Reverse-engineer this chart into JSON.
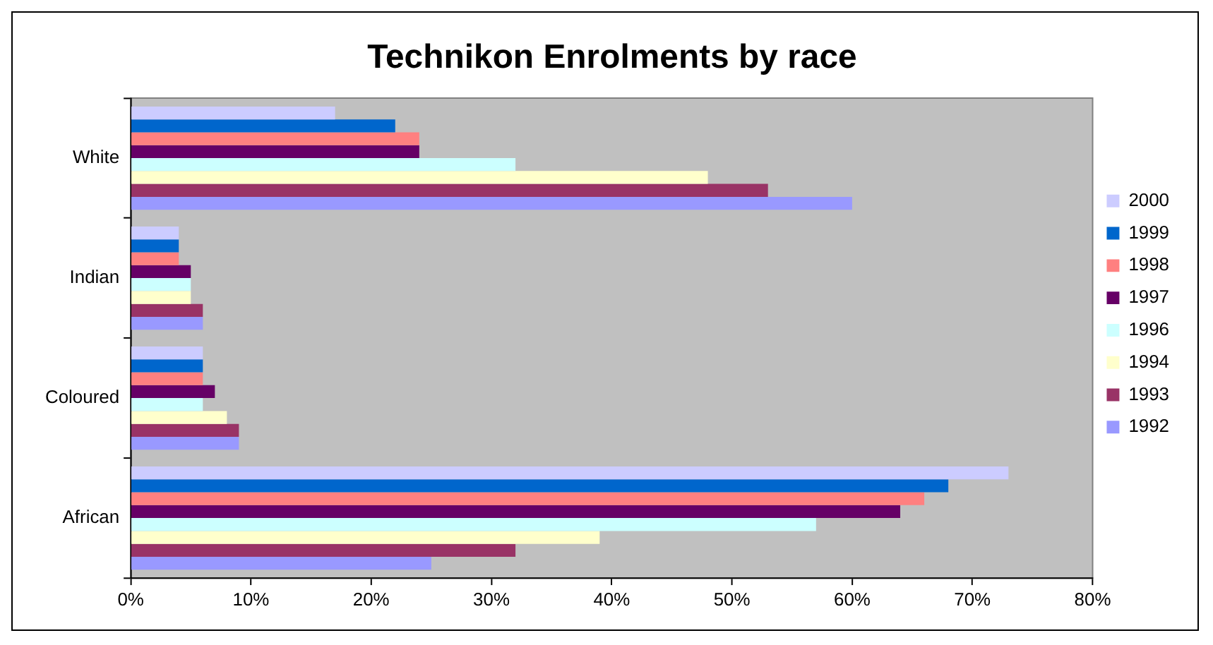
{
  "chart_data": {
    "type": "bar",
    "orientation": "horizontal",
    "title": "Technikon Enrolments by race",
    "categories": [
      "White",
      "Indian",
      "Coloured",
      "African"
    ],
    "series": [
      {
        "name": "2000",
        "color": "#ccccff",
        "values": [
          17,
          4,
          6,
          73
        ]
      },
      {
        "name": "1999",
        "color": "#0066cc",
        "values": [
          22,
          4,
          6,
          68
        ]
      },
      {
        "name": "1998",
        "color": "#ff8080",
        "values": [
          24,
          4,
          6,
          66
        ]
      },
      {
        "name": "1997",
        "color": "#660066",
        "values": [
          24,
          5,
          7,
          64
        ]
      },
      {
        "name": "1996",
        "color": "#ccffff",
        "values": [
          32,
          5,
          6,
          57
        ]
      },
      {
        "name": "1994",
        "color": "#ffffcc",
        "values": [
          48,
          5,
          8,
          39
        ]
      },
      {
        "name": "1993",
        "color": "#993366",
        "values": [
          53,
          6,
          9,
          32
        ]
      },
      {
        "name": "1992",
        "color": "#9999ff",
        "values": [
          60,
          6,
          9,
          25
        ]
      }
    ],
    "xlim": [
      0,
      80
    ],
    "xticks": [
      {
        "value": 0,
        "label": "0%"
      },
      {
        "value": 10,
        "label": "10%"
      },
      {
        "value": 20,
        "label": "20%"
      },
      {
        "value": 30,
        "label": "30%"
      },
      {
        "value": 40,
        "label": "40%"
      },
      {
        "value": 50,
        "label": "50%"
      },
      {
        "value": 60,
        "label": "60%"
      },
      {
        "value": 70,
        "label": "70%"
      },
      {
        "value": 80,
        "label": "80%"
      }
    ],
    "grid": false,
    "legend": "right"
  }
}
